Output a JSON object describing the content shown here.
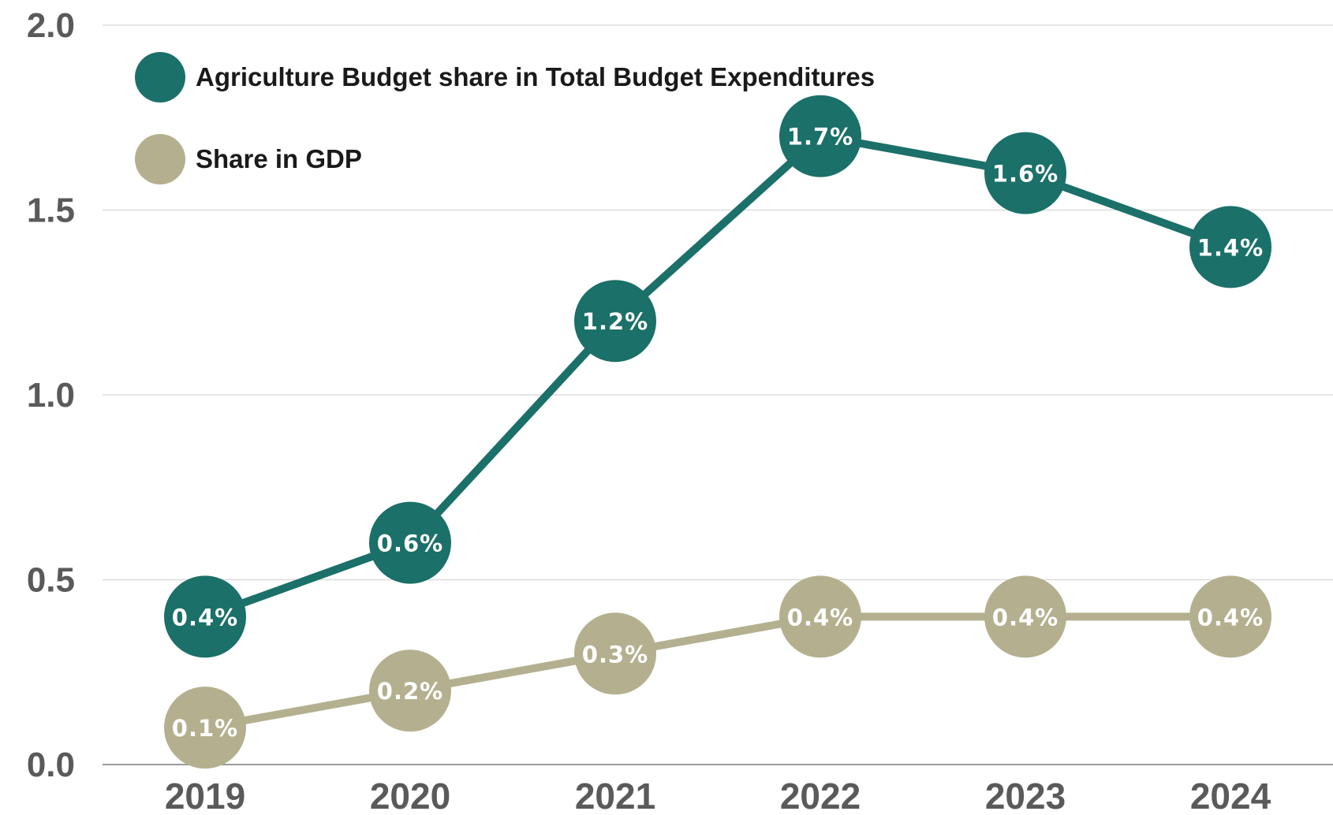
{
  "chart_data": {
    "type": "line",
    "categories": [
      "2019",
      "2020",
      "2021",
      "2022",
      "2023",
      "2024"
    ],
    "ylim": [
      0,
      2.0
    ],
    "yticks": [
      "0.0",
      "0.5",
      "1.0",
      "1.5",
      "2.0"
    ],
    "grid": true,
    "legend_position": "top-left",
    "series": [
      {
        "name": "Agriculture Budget share in Total Budget Expenditures",
        "values": [
          0.4,
          0.6,
          1.2,
          1.7,
          1.6,
          1.4
        ],
        "labels": [
          "0.4%",
          "0.6%",
          "1.2%",
          "1.7%",
          "1.6%",
          "1.4%"
        ],
        "color": "#1b7069"
      },
      {
        "name": "Share in GDP",
        "values": [
          0.1,
          0.2,
          0.3,
          0.4,
          0.4,
          0.4
        ],
        "labels": [
          "0.1%",
          "0.2%",
          "0.3%",
          "0.4%",
          "0.4%",
          "0.4%"
        ],
        "color": "#b4b08f"
      }
    ]
  }
}
